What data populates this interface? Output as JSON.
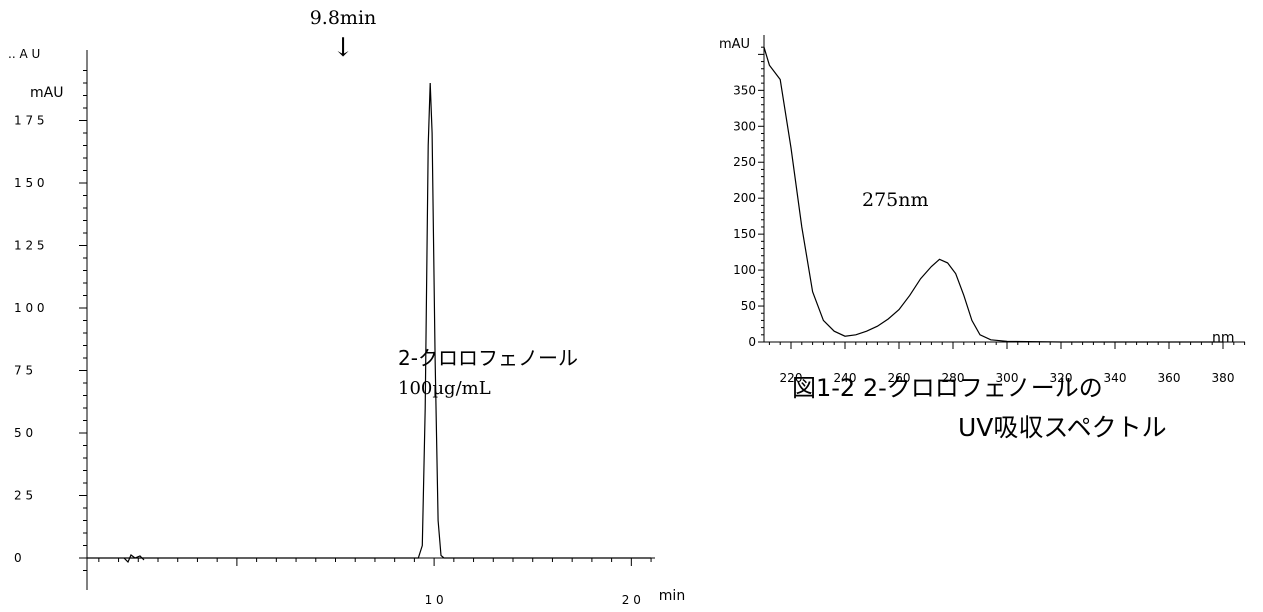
{
  "chart_data": [
    {
      "type": "line",
      "title": "",
      "ylabel_top": ".. A U",
      "ylabel": "mAU",
      "xlabel": "min",
      "xlim": [
        -7.6,
        21.2
      ],
      "ylim": [
        0,
        200
      ],
      "y_ticks": [
        0,
        25,
        50,
        75,
        100,
        125,
        150,
        175
      ],
      "y_tick_labels": [
        "0",
        "2 5",
        "5 0",
        "7 5",
        "1 0 0",
        "1 2 5",
        "1 5 0",
        "1 7 5"
      ],
      "x_ticks": [
        10,
        20
      ],
      "x_tick_labels": [
        "1 0",
        "2 0"
      ],
      "series": [
        {
          "x": [
            -7.6,
            5,
            9.2,
            9.4,
            9.55,
            9.7,
            9.8,
            9.9,
            10.05,
            10.2,
            10.35,
            10.5,
            11.5,
            21
          ],
          "y": [
            0,
            0,
            0,
            5,
            60,
            165,
            190,
            170,
            80,
            15,
            1,
            0,
            0,
            0
          ]
        }
      ],
      "annotations": [
        {
          "text": "9.8min",
          "x": 9.8
        },
        {
          "text": "↓",
          "x": 9.8
        }
      ],
      "compound": "2-クロロフェノール",
      "concentration": "100µg/mL"
    },
    {
      "type": "line",
      "title": "",
      "ylabel": "mAU",
      "xlabel": "nm",
      "xlim": [
        210,
        390
      ],
      "ylim": [
        0,
        420
      ],
      "y_ticks": [
        0,
        50,
        100,
        150,
        200,
        250,
        300,
        350
      ],
      "y_tick_labels": [
        "0",
        "50",
        "100",
        "150",
        "200",
        "250",
        "300",
        "350"
      ],
      "x_ticks": [
        220,
        240,
        260,
        280,
        300,
        320,
        340,
        360,
        380
      ],
      "x_tick_labels": [
        "220",
        "240",
        "260",
        "280",
        "300",
        "320",
        "340",
        "360",
        "380"
      ],
      "series": [
        {
          "x": [
            210,
            212,
            216,
            220,
            224,
            228,
            232,
            236,
            240,
            244,
            248,
            252,
            256,
            260,
            264,
            268,
            272,
            275,
            278,
            281,
            284,
            287,
            290,
            294,
            300,
            320,
            360,
            380
          ],
          "y": [
            410,
            385,
            365,
            270,
            160,
            70,
            30,
            15,
            8,
            10,
            15,
            22,
            32,
            45,
            65,
            88,
            105,
            115,
            110,
            95,
            65,
            30,
            10,
            3,
            1,
            0,
            0,
            0
          ]
        }
      ],
      "annotations": [
        {
          "text": "275nm",
          "x": 275
        }
      ],
      "caption_line1": "図1-2 2-クロロフェノールの",
      "caption_line2": "UV吸収スペクトル"
    }
  ]
}
